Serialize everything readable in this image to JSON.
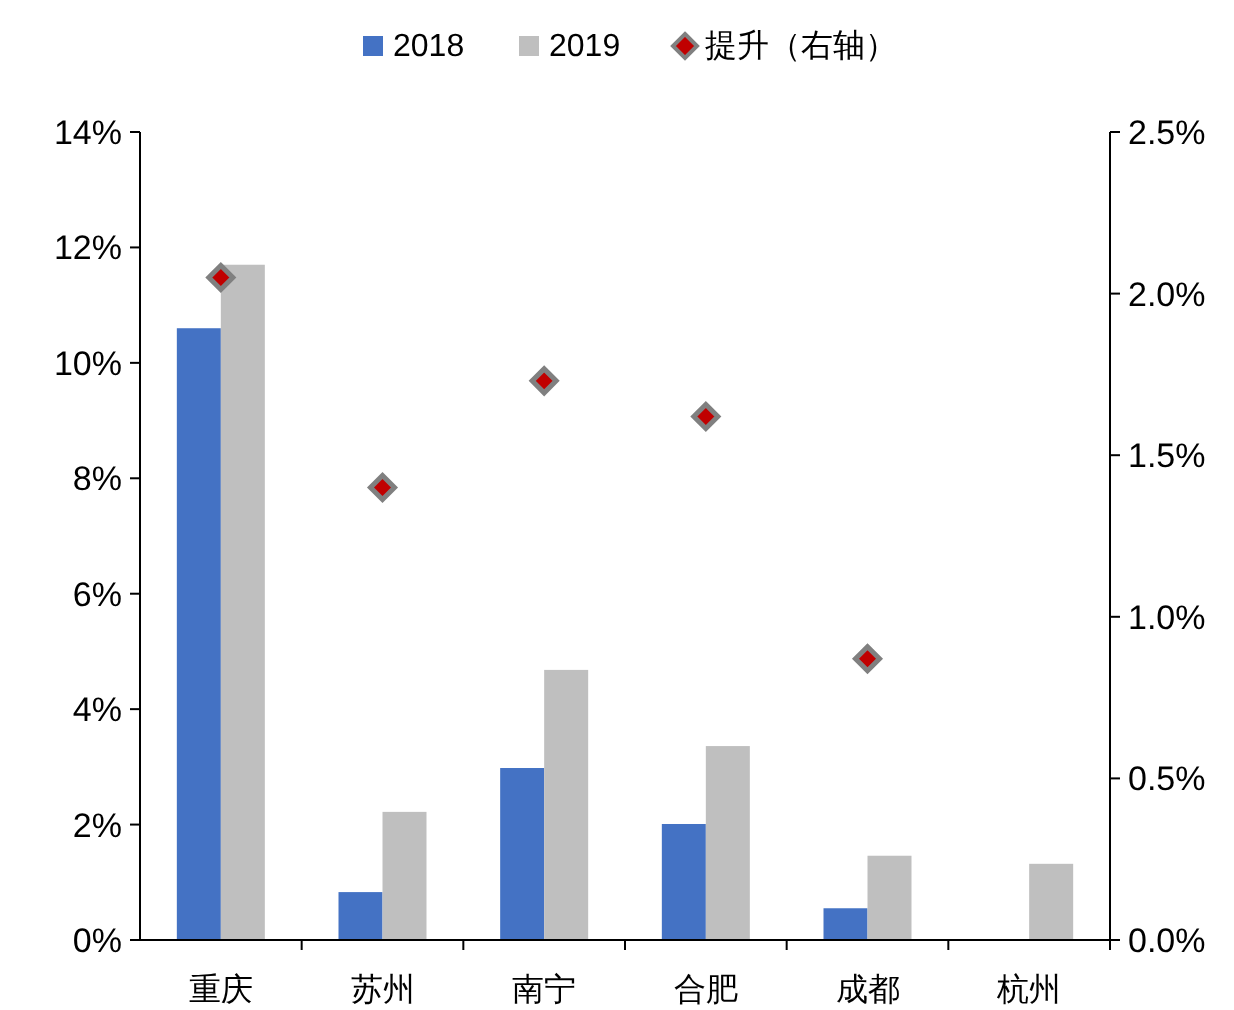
{
  "chart_data": {
    "type": "bar",
    "categories": [
      "重庆",
      "苏州",
      "南宁",
      "合肥",
      "成都",
      "杭州"
    ],
    "series": [
      {
        "name": "2018",
        "color": "#4472c4",
        "values": [
          10.6,
          0.83,
          2.98,
          2.01,
          0.55,
          null
        ]
      },
      {
        "name": "2019",
        "color": "#bfbfbf",
        "values": [
          11.7,
          2.22,
          4.68,
          3.36,
          1.46,
          1.32
        ]
      },
      {
        "name": "提升（右轴）",
        "type": "scatter",
        "axis": "y2",
        "marker": "diamond",
        "color": "#c00000",
        "values": [
          2.05,
          1.4,
          1.73,
          1.62,
          0.87,
          null
        ]
      }
    ],
    "ylim": [
      0,
      14
    ],
    "yticks": [
      {
        "value": 0,
        "label": "0%"
      },
      {
        "value": 2,
        "label": "2%"
      },
      {
        "value": 4,
        "label": "4%"
      },
      {
        "value": 6,
        "label": "6%"
      },
      {
        "value": 8,
        "label": "8%"
      },
      {
        "value": 10,
        "label": "10%"
      },
      {
        "value": 12,
        "label": "12%"
      },
      {
        "value": 14,
        "label": "14%"
      }
    ],
    "y2lim": [
      0,
      2.5
    ],
    "y2ticks": [
      {
        "value": 0,
        "label": "0.0%"
      },
      {
        "value": 0.5,
        "label": "0.5%"
      },
      {
        "value": 1,
        "label": "1.0%"
      },
      {
        "value": 1.5,
        "label": "1.5%"
      },
      {
        "value": 2,
        "label": "2.0%"
      },
      {
        "value": 2.5,
        "label": "2.5%"
      }
    ],
    "legend": "top",
    "grid": false
  }
}
